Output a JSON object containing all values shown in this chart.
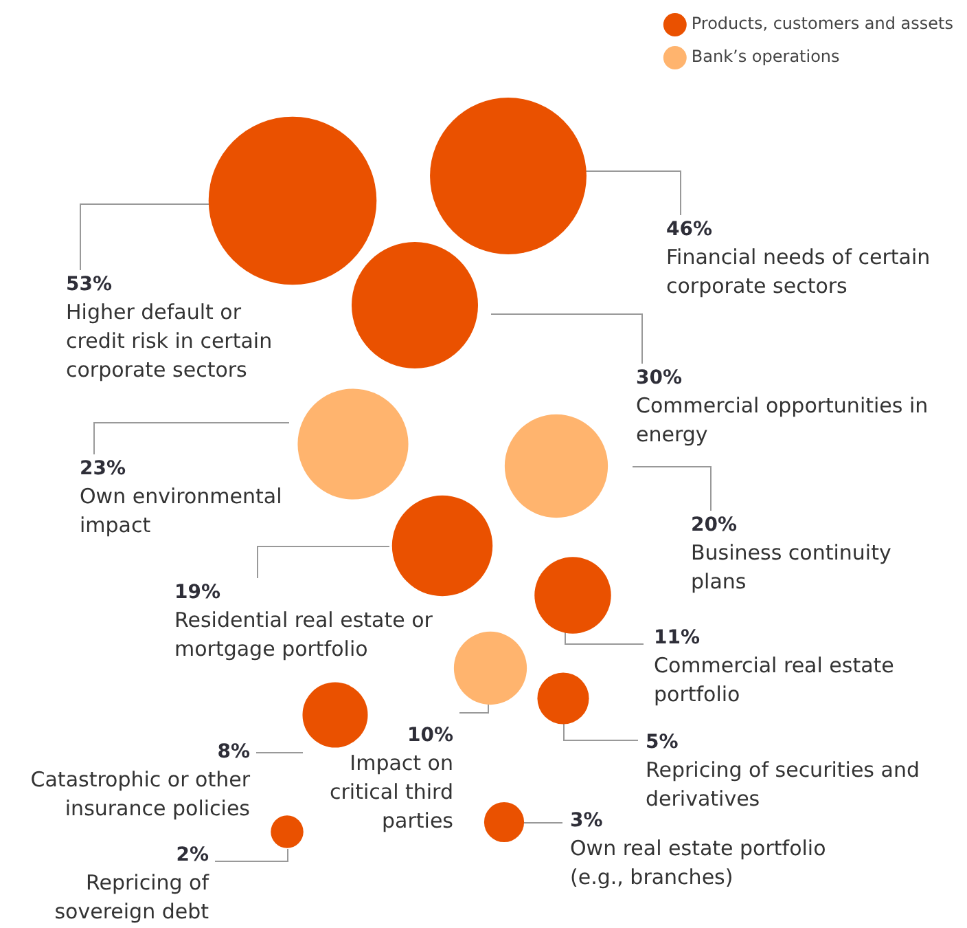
{
  "chart_data": {
    "type": "other",
    "legend": "top right",
    "categories": [
      "Higher default or credit risk in certain corporate sectors",
      "Financial needs of certain corporate sectors",
      "Commercial opportunities in energy",
      "Own environmental impact",
      "Business continuity plans",
      "Residential real estate or mortgage portfolio",
      "Commercial real estate portfolio",
      "Impact on critical third parties",
      "Catastrophic or other insurance policies",
      "Repricing of securities and derivatives",
      "Own real estate portfolio (e.g., branches)",
      "Repricing of sovereign debt"
    ],
    "series": [
      {
        "name": "Products, customers and assets",
        "color": "#ea5100",
        "values": [
          53,
          46,
          30,
          null,
          null,
          19,
          11,
          null,
          8,
          5,
          3,
          2
        ],
        "value_labels": [
          "53%",
          "46%",
          "30%",
          null,
          null,
          "19%",
          "11%",
          null,
          "8%",
          "5%",
          "3%",
          "2%"
        ]
      },
      {
        "name": "Bank’s operations",
        "color": "#ffb46e",
        "values": [
          null,
          null,
          null,
          23,
          20,
          null,
          null,
          10,
          null,
          null,
          null,
          null
        ],
        "value_labels": [
          null,
          null,
          null,
          "23%",
          "20%",
          null,
          null,
          "10%",
          null,
          null,
          null,
          null
        ]
      }
    ]
  }
}
